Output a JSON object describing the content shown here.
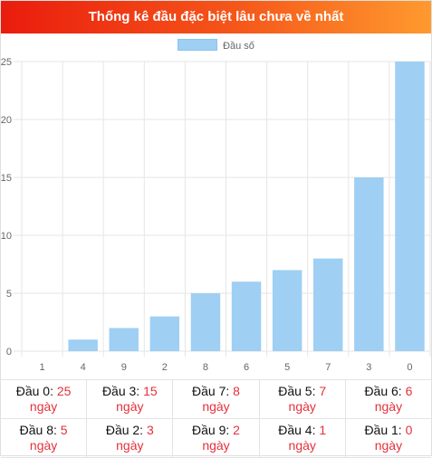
{
  "header": {
    "title": "Thống kê đầu đặc biệt lâu chưa về nhất"
  },
  "chart_data": {
    "type": "bar",
    "title": "",
    "categories": [
      "1",
      "4",
      "9",
      "2",
      "8",
      "6",
      "5",
      "7",
      "3",
      "0"
    ],
    "series": [
      {
        "name": "Đầu số",
        "values": [
          0,
          1,
          2,
          3,
          5,
          6,
          7,
          8,
          15,
          25
        ]
      }
    ],
    "yticks": [
      "0",
      "5",
      "10",
      "15",
      "20",
      "25"
    ],
    "ylim": [
      0,
      25
    ],
    "grid": true,
    "legend": "top-center",
    "bar_color": "#9fcff3"
  },
  "stats": {
    "unit": "ngày",
    "rows": [
      [
        {
          "label": "Đầu 0:",
          "value": "25"
        },
        {
          "label": "Đầu 3:",
          "value": "15"
        },
        {
          "label": "Đầu 7:",
          "value": "8"
        },
        {
          "label": "Đầu 5:",
          "value": "7"
        },
        {
          "label": "Đầu 6:",
          "value": "6"
        }
      ],
      [
        {
          "label": "Đầu 8:",
          "value": "5"
        },
        {
          "label": "Đầu 2:",
          "value": "3"
        },
        {
          "label": "Đầu 9:",
          "value": "2"
        },
        {
          "label": "Đầu 4:",
          "value": "1"
        },
        {
          "label": "Đầu 1:",
          "value": "0"
        }
      ]
    ]
  }
}
